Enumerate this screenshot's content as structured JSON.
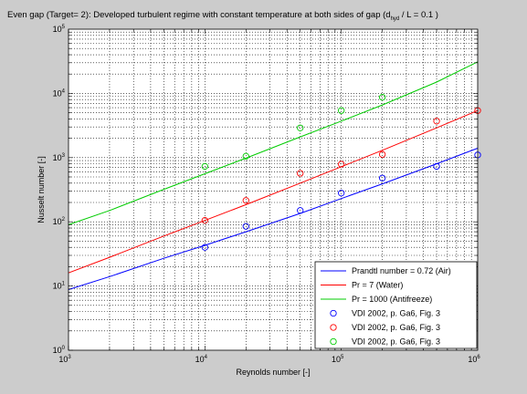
{
  "chart_data": {
    "type": "line",
    "title": "Even gap (Target= 2): Developed turbulent regime with constant temperature at both sides of gap (d",
    "title_sub": "hyd",
    "title_tail": " / L = 0.1 )",
    "xlabel": "Reynolds number [-]",
    "ylabel": "Nusselt number [-]",
    "xscale": "log",
    "yscale": "log",
    "xlim": [
      1000,
      1000000
    ],
    "ylim": [
      1,
      100000
    ],
    "grid": "on",
    "legend_position": "bottom-right",
    "x_ticks": [
      {
        "base": "10",
        "exp": "3",
        "value": 1000
      },
      {
        "base": "10",
        "exp": "4",
        "value": 10000
      },
      {
        "base": "10",
        "exp": "5",
        "value": 100000
      },
      {
        "base": "10",
        "exp": "6",
        "value": 1000000
      }
    ],
    "y_ticks": [
      {
        "base": "10",
        "exp": "0",
        "value": 1
      },
      {
        "base": "10",
        "exp": "1",
        "value": 10
      },
      {
        "base": "10",
        "exp": "2",
        "value": 100
      },
      {
        "base": "10",
        "exp": "3",
        "value": 1000
      },
      {
        "base": "10",
        "exp": "4",
        "value": 10000
      },
      {
        "base": "10",
        "exp": "5",
        "value": 100000
      }
    ],
    "series": [
      {
        "name": "Prandtl number = 0.72 (Air)",
        "kind": "line",
        "color": "#0000ff",
        "x": [
          1000,
          2000,
          5000,
          10000,
          20000,
          50000,
          100000,
          200000,
          500000,
          1000000
        ],
        "y": [
          8.8,
          14,
          27,
          43,
          70,
          135,
          230,
          390,
          800,
          1400
        ]
      },
      {
        "name": "Pr = 7 (Water)",
        "kind": "line",
        "color": "#ff0000",
        "x": [
          1000,
          2000,
          5000,
          10000,
          20000,
          50000,
          100000,
          200000,
          500000,
          1000000
        ],
        "y": [
          16,
          28,
          60,
          105,
          185,
          400,
          720,
          1300,
          2900,
          5400
        ]
      },
      {
        "name": "Pr = 1000 (Antifreeze)",
        "kind": "line",
        "color": "#00cc00",
        "x": [
          1000,
          2000,
          5000,
          10000,
          20000,
          50000,
          100000,
          200000,
          500000,
          1000000
        ],
        "y": [
          90,
          150,
          320,
          560,
          980,
          2100,
          3700,
          6600,
          15000,
          31000
        ]
      },
      {
        "name": "VDI 2002, p. Ga6, Fig. 3",
        "kind": "markers",
        "color": "#0000ff",
        "x": [
          10000,
          20000,
          50000,
          100000,
          200000,
          500000,
          1000000
        ],
        "y": [
          40,
          85,
          150,
          280,
          480,
          730,
          1100
        ]
      },
      {
        "name": "VDI 2002, p. Ga6, Fig. 3",
        "kind": "markers",
        "color": "#ff0000",
        "x": [
          10000,
          20000,
          50000,
          100000,
          200000,
          500000,
          1000000
        ],
        "y": [
          105,
          215,
          570,
          790,
          1120,
          3700,
          5400
        ]
      },
      {
        "name": "VDI 2002, p. Ga6, Fig. 3",
        "kind": "markers",
        "color": "#00cc00",
        "x": [
          10000,
          20000,
          50000,
          100000,
          200000
        ],
        "y": [
          730,
          1050,
          2900,
          5400,
          8700
        ]
      }
    ]
  }
}
